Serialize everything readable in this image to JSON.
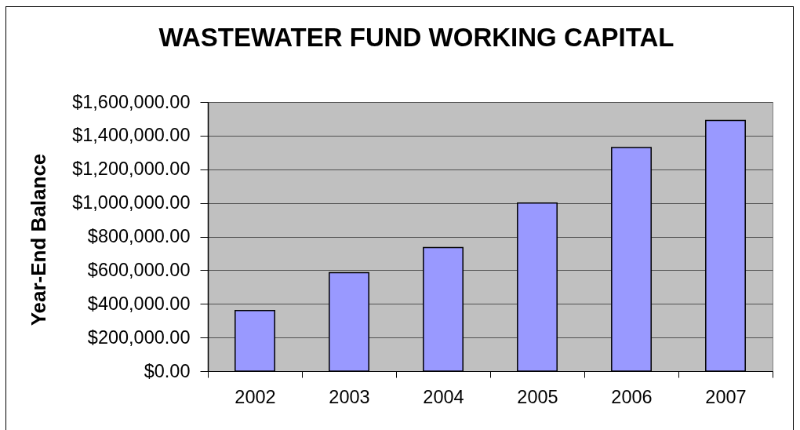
{
  "chart_data": {
    "type": "bar",
    "title": "WASTEWATER FUND WORKING CAPITAL",
    "ylabel": "Year-End Balance",
    "categories": [
      "2002",
      "2003",
      "2004",
      "2005",
      "2006",
      "2007"
    ],
    "values": [
      360000,
      585000,
      735000,
      1000000,
      1330000,
      1490000
    ],
    "color": "#9999ff",
    "ylim": [
      0,
      1600000
    ],
    "yticks": [
      {
        "value": 0,
        "label": "$0.00"
      },
      {
        "value": 200000,
        "label": "$200,000.00"
      },
      {
        "value": 400000,
        "label": "$400,000.00"
      },
      {
        "value": 600000,
        "label": "$600,000.00"
      },
      {
        "value": 800000,
        "label": "$800,000.00"
      },
      {
        "value": 1000000,
        "label": "$1,000,000.00"
      },
      {
        "value": 1200000,
        "label": "$1,200,000.00"
      },
      {
        "value": 1400000,
        "label": "$1,400,000.00"
      },
      {
        "value": 1600000,
        "label": "$1,600,000.00"
      }
    ],
    "grid": "y"
  }
}
